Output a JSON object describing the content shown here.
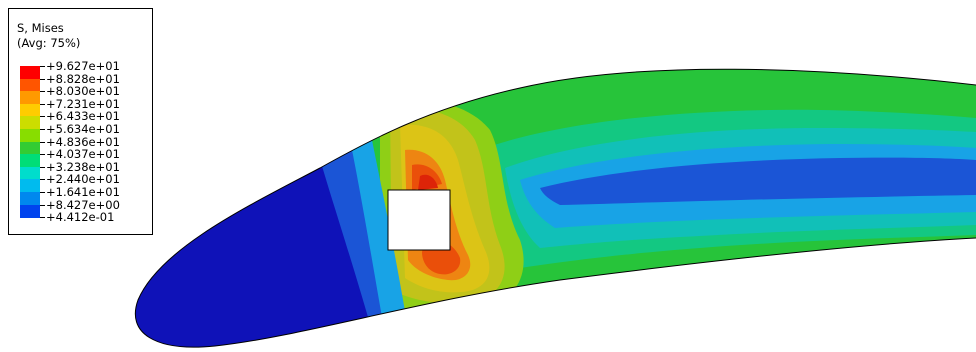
{
  "legend": {
    "title": "S, Mises",
    "subtitle": "(Avg: 75%)",
    "levels": [
      {
        "label": "+9.627e+01",
        "color": "#ff0000"
      },
      {
        "label": "+8.828e+01",
        "color": "#ff5500"
      },
      {
        "label": "+8.030e+01",
        "color": "#ff9900"
      },
      {
        "label": "+7.231e+01",
        "color": "#ffcc00"
      },
      {
        "label": "+6.433e+01",
        "color": "#ccdd00"
      },
      {
        "label": "+5.634e+01",
        "color": "#88dd00"
      },
      {
        "label": "+4.836e+01",
        "color": "#33cc33"
      },
      {
        "label": "+4.037e+01",
        "color": "#00dd77"
      },
      {
        "label": "+3.238e+01",
        "color": "#00ddcc"
      },
      {
        "label": "+2.440e+01",
        "color": "#00bbee"
      },
      {
        "label": "+1.641e+01",
        "color": "#0088ee"
      },
      {
        "label": "+8.427e+00",
        "color": "#0044ee"
      },
      {
        "label": "+4.412e-01",
        "color": "#0000cc"
      }
    ]
  },
  "contour_colors": {
    "deep_blue": "#0f12b8",
    "blue": "#1b55d6",
    "sky": "#18a3e6",
    "teal": "#11c0b8",
    "green_teal": "#13c882",
    "green": "#27c43a",
    "light_green": "#8fcf16",
    "yellow_green": "#c2c31a",
    "yellow": "#dcc416",
    "orange": "#ee8512",
    "red_orange": "#ea4f0a",
    "red": "#dd2408"
  }
}
